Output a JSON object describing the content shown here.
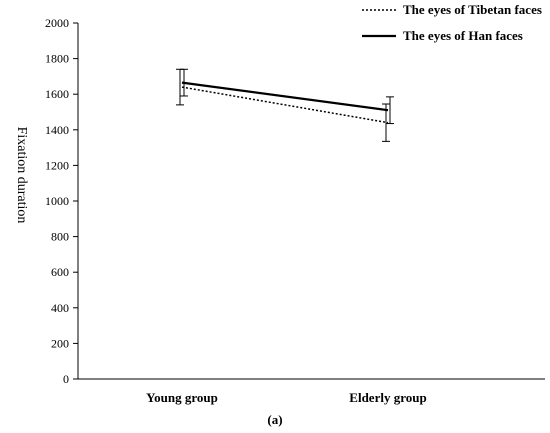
{
  "chart_data": {
    "type": "line",
    "categories": [
      "Young group",
      "Elderly group"
    ],
    "series": [
      {
        "name": "The eyes of Tibetan faces",
        "style": "dotted",
        "color": "#000000",
        "values": [
          1640,
          1440
        ],
        "error": [
          100,
          105
        ]
      },
      {
        "name": "The eyes of Han faces",
        "style": "solid",
        "color": "#000000",
        "values": [
          1665,
          1510
        ],
        "error": [
          75,
          75
        ]
      }
    ],
    "ylabel": "Fixation  duration",
    "xlabel": "",
    "ylim": [
      0,
      2000
    ],
    "yticks": [
      0,
      200,
      400,
      600,
      800,
      1000,
      1200,
      1400,
      1600,
      1800,
      2000
    ],
    "grid": false,
    "legend": "top-right",
    "caption": "(a)"
  }
}
